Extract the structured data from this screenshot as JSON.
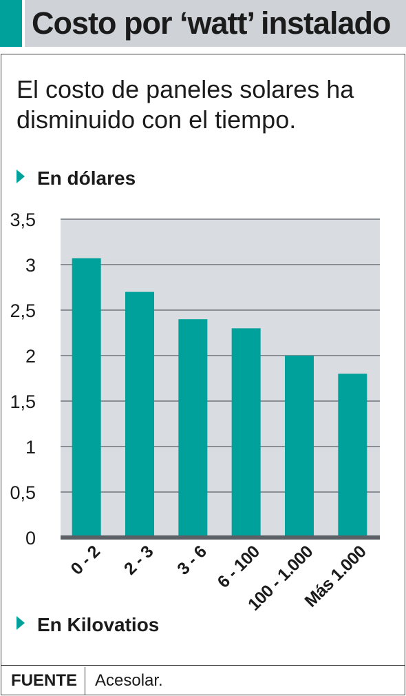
{
  "header": {
    "title": "Costo por ‘watt’ instalado"
  },
  "subtitle": "El costo de paneles solares ha disminuido con el tiempo.",
  "units_label": "En dólares",
  "xaxis_label": "En Kilovatios",
  "footer": {
    "source_key": "FUENTE",
    "source_value": "Acesolar."
  },
  "colors": {
    "accent": "#00a19a",
    "bar": "#00a19a",
    "plot_bg": "#d9dde2",
    "header_bg": "#cfd3d8"
  },
  "chart_data": {
    "type": "bar",
    "categories": [
      "0 - 2",
      "2 - 3",
      "3 - 6",
      "6 - 100",
      "100 - 1.000",
      "Más 1.000"
    ],
    "values": [
      3.07,
      2.7,
      2.4,
      2.3,
      2.0,
      1.8
    ],
    "yticks": [
      "0",
      "0,5",
      "1",
      "1,5",
      "2",
      "2,5",
      "3",
      "3,5"
    ],
    "ylim": [
      0,
      3.5
    ],
    "ylabel": "En dólares",
    "xlabel": "En Kilovatios",
    "grid": true
  }
}
